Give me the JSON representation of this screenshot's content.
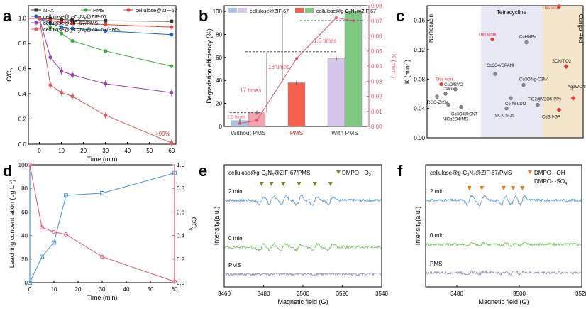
{
  "chart_data": [
    {
      "id": "a",
      "panel_label": "a",
      "type": "line",
      "title": "",
      "xlabel": "Time (min)",
      "ylabel": "C/C",
      "ylabel_sub": "0",
      "xlim": [
        -5,
        62
      ],
      "ylim": [
        0.0,
        1.1
      ],
      "xticks": [
        0,
        10,
        20,
        30,
        40,
        50,
        60
      ],
      "yticks": [
        0.0,
        0.2,
        0.4,
        0.6,
        0.8,
        1.0
      ],
      "x": [
        -5,
        0,
        5,
        10,
        15,
        30,
        60
      ],
      "series": [
        {
          "name": "NFX",
          "color": "#333333",
          "marker": "square",
          "values": [
            1.0,
            1.0,
            0.995,
            0.99,
            0.985,
            0.98,
            0.975
          ]
        },
        {
          "name": "PMS",
          "color": "#3aa83a",
          "marker": "circle",
          "values": [
            1.0,
            1.0,
            0.93,
            0.88,
            0.82,
            0.74,
            0.62
          ]
        },
        {
          "name": "cellulose@ZIF-67",
          "color": "#e53935",
          "marker": "circle",
          "values": [
            1.0,
            1.0,
            0.98,
            0.97,
            0.96,
            0.95,
            0.93
          ]
        },
        {
          "name": "cellulose@g-C3N4@ZIF-67",
          "color": "#1e63b8",
          "marker": "circle",
          "values": [
            1.0,
            1.0,
            0.96,
            0.93,
            0.92,
            0.9,
            0.87
          ]
        },
        {
          "name": "cellulose@ZIF-67/PMS",
          "color": "#8e44ad",
          "marker": "circle",
          "values": [
            1.0,
            1.0,
            0.69,
            0.58,
            0.55,
            0.48,
            0.41
          ]
        },
        {
          "name": "cellulose@g-C3N4@ZIF-67/PMS",
          "color": "#e05a5a",
          "marker": "circle",
          "values": [
            1.0,
            1.0,
            0.47,
            0.41,
            0.38,
            0.23,
            0.01
          ]
        }
      ],
      "legend_labels": [
        "NFX",
        "PMS",
        "cellulose@ZIF-67",
        "cellulose@g-C",
        "@ZIF-67",
        "cellulose@ZIF-67/PMS",
        "cellulose@g-C",
        "@ZIF-67/PMS",
        "3",
        "N",
        "4"
      ],
      "annotation": ">99%"
    },
    {
      "id": "b",
      "panel_label": "b",
      "type": "bar",
      "title": "",
      "categories": [
        "Without PMS",
        "PMS",
        "With PMS"
      ],
      "xlabel": "",
      "ylabel": "Degradation efficiency (%)",
      "ylabel2": "K (min",
      "ylabel2_sup": "-1",
      "ylabel2_tail": ")",
      "ylim": [
        0,
        105
      ],
      "ylim2": [
        0.0,
        0.08
      ],
      "yticks": [
        0,
        20,
        40,
        60,
        80,
        100
      ],
      "yticks2": [
        0.0,
        0.01,
        0.02,
        0.03,
        0.04,
        0.05,
        0.06,
        0.07,
        0.08
      ],
      "series": [
        {
          "name": "cellulose@ZIF-67",
          "values": [
            5,
            38,
            59
          ]
        },
        {
          "name": "cellulose@g-C3N4@ZIF-67",
          "values": [
            12,
            38,
            100
          ]
        }
      ],
      "k_line": [
        0.002,
        0.004,
        0.045,
        0.072,
        0.07
      ],
      "annotations": [
        "1.5 times",
        "17 times",
        "18 times",
        "1.6 times"
      ],
      "legend_labels": [
        "cellulose@ZIF-67",
        "cellulose@g-C",
        "N",
        "@ZIF-67",
        "3",
        "4"
      ],
      "category_colors": [
        "#333333",
        "#e53935",
        "#333333"
      ]
    },
    {
      "id": "c",
      "panel_label": "c",
      "type": "scatter",
      "title": "",
      "xlabel": "",
      "ylabel": "K (min",
      "ylabel_sup": "-1",
      "ylabel_tail": ")",
      "ylim": [
        0.0,
        0.18
      ],
      "yticks": [
        0.0,
        0.04,
        0.08,
        0.12,
        0.16
      ],
      "regions": [
        "Norfloxacin",
        "Tetracycline",
        "Congo Red"
      ],
      "points": [
        {
          "label": "This work",
          "k": 0.073,
          "kind": "work"
        },
        {
          "label": "RGO-ZnSe",
          "k": 0.056
        },
        {
          "label": "Calcite",
          "k": 0.06
        },
        {
          "label": "CuO/BVO",
          "k": 0.066
        },
        {
          "label": "NiCo2O4/MS",
          "k": 0.045
        },
        {
          "label": "Co3O4@CNT",
          "k": 0.042
        },
        {
          "label": "This work",
          "k": 0.134,
          "kind": "work"
        },
        {
          "label": "Co3O4/CPANI",
          "k": 0.087
        },
        {
          "label": "BC/CN-15",
          "k": 0.04
        },
        {
          "label": "Co-Ni LDO",
          "k": 0.054
        },
        {
          "label": "Co3O4/g-C3N4",
          "k": 0.072
        },
        {
          "label": "CuHNPs",
          "k": 0.13
        },
        {
          "label": "TiO2@V2O5-PPy",
          "k": 0.045
        },
        {
          "label": "This work",
          "k": 0.179,
          "kind": "work"
        },
        {
          "label": "SCN/TiO2",
          "k": 0.097,
          "kind": "diamond"
        },
        {
          "label": "Ag3WO4/Bi2S3",
          "k": 0.054,
          "kind": "diamond"
        },
        {
          "label": "CdS-f-GA",
          "k": 0.038,
          "kind": "diamond"
        }
      ]
    },
    {
      "id": "d",
      "panel_label": "d",
      "type": "line",
      "title": "",
      "xlabel": "Time (min)",
      "ylabel": "Leaching concentration (ug L",
      "ylabel_sup": "-1",
      "ylabel_tail": ")",
      "ylabel2": "C/C",
      "ylabel2_sub": "0",
      "xlim": [
        0,
        60
      ],
      "ylim": [
        0,
        100
      ],
      "ylim2": [
        0.0,
        1.0
      ],
      "xticks": [
        0,
        10,
        20,
        30,
        40,
        50,
        60
      ],
      "yticks": [
        0,
        20,
        40,
        60,
        80,
        100
      ],
      "yticks2": [
        0.0,
        0.2,
        0.4,
        0.6,
        0.8,
        1.0
      ],
      "x": [
        0,
        5,
        10,
        15,
        30,
        60
      ],
      "series": [
        {
          "name": "Leaching concentration",
          "axis": "left",
          "color": "#4a90d9",
          "values": [
            0,
            22,
            34,
            74,
            76,
            93
          ]
        },
        {
          "name": "C/C0",
          "axis": "right",
          "color": "#e5556a",
          "values": [
            1.0,
            0.47,
            0.43,
            0.41,
            0.22,
            0.01
          ]
        }
      ]
    },
    {
      "id": "e",
      "panel_label": "e",
      "type": "line",
      "title": "cellulose@g-C",
      "title_parts": [
        "cellulose@g-C",
        "3",
        "N",
        "4",
        "@ZIF-67/PMS"
      ],
      "xlabel": "Magnetic field (G)",
      "ylabel": "Intensity(a.u.)",
      "xlim": [
        3460,
        3540
      ],
      "xticks": [
        3460,
        3480,
        3500,
        3520,
        3540
      ],
      "legend": "DMPO- ·O",
      "legend_sub": "2",
      "legend_sup": "-",
      "peaks": [
        3479,
        3484,
        3490,
        3498,
        3506,
        3514
      ],
      "traces": [
        {
          "label": "2 min",
          "color": "#4a90d9",
          "amplitude": 1.0
        },
        {
          "label": "0 min",
          "color": "#6abf4b",
          "amplitude": 0.75
        },
        {
          "label": "PMS",
          "color": "#8a7cc0",
          "amplitude": 0.1
        }
      ]
    },
    {
      "id": "f",
      "panel_label": "f",
      "type": "line",
      "title": "cellulose@g-C",
      "title_parts": [
        "cellulose@g-C",
        "3",
        "N",
        "4",
        "@ZIF-67/PMS"
      ],
      "xlabel": "Magnetic field (G)",
      "ylabel": "Intensity(a.u.)",
      "xlim": [
        3470,
        3520
      ],
      "xticks": [
        3480,
        3500,
        3520
      ],
      "legend": [
        "DMPO- ·OH",
        "DMPO- ·SO"
      ],
      "legend_sub": "4",
      "legend_sup": "-",
      "peaks": [
        3484,
        3488,
        3495,
        3498,
        3501
      ],
      "traces": [
        {
          "label": "2 min",
          "color": "#4a90d9",
          "amplitude": 1.0
        },
        {
          "label": "0 min",
          "color": "#6abf4b",
          "amplitude": 0.3
        },
        {
          "label": "PMS",
          "color": "#8a7cc0",
          "amplitude": 0.25
        }
      ]
    }
  ]
}
